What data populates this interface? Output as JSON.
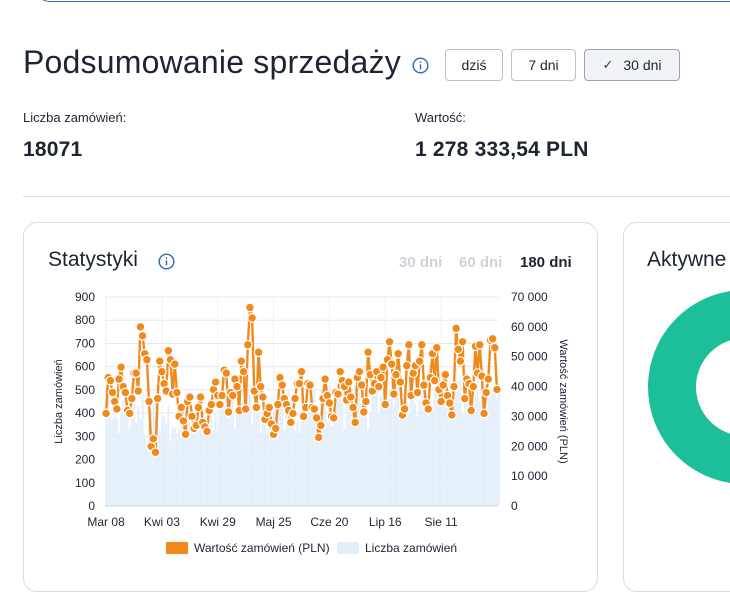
{
  "page": {
    "title": "Podsumowanie sprzedaży"
  },
  "range_buttons": [
    {
      "label": "dziś",
      "active": false
    },
    {
      "label": "7 dni",
      "active": false
    },
    {
      "label": "30 dni",
      "active": true
    }
  ],
  "metrics": {
    "orders": {
      "label": "Liczba zamówień:",
      "value": "18071"
    },
    "value": {
      "label": "Wartość:",
      "value": "1 278 333,54 PLN"
    }
  },
  "stats_card": {
    "title": "Statystyki",
    "periods": [
      {
        "label": "30 dni",
        "active": false
      },
      {
        "label": "60 dni",
        "active": false
      },
      {
        "label": "180 dni",
        "active": true
      }
    ]
  },
  "active_card": {
    "title": "Aktywne"
  },
  "colors": {
    "orange": "#f08a1c",
    "bars": "#e3eefb",
    "teal": "#1dbf9a",
    "accent": "#2b6cb0"
  },
  "chart_data": {
    "type": "line",
    "x_tick_labels": [
      "Mar 08",
      "Kwi 03",
      "Kwi 29",
      "Maj 25",
      "Cze 20",
      "Lip 16",
      "Sie 11"
    ],
    "x_tick_positions": [
      0,
      26,
      52,
      78,
      104,
      130,
      156
    ],
    "left_axis": {
      "title": "Liczba zamówień",
      "range": [
        0,
        900
      ],
      "ticks": [
        0,
        100,
        200,
        300,
        400,
        500,
        600,
        700,
        800,
        900
      ]
    },
    "right_axis": {
      "title": "Wartość zamówień (PLN)",
      "range": [
        0,
        70000
      ],
      "ticks": [
        "0",
        "10 000",
        "20 000",
        "30 000",
        "40 000",
        "50 000",
        "60 000",
        "70 000"
      ]
    },
    "legend": {
      "orange_label": "Wartość zamówień (PLN)",
      "bars_label": "Liczba zamówień",
      "placement": "bottom"
    },
    "grid": true,
    "series": [
      {
        "axis": "right",
        "style": "line-markers",
        "values": [
          31000,
          43000,
          42000,
          38000,
          35000,
          32500,
          42500,
          46500,
          40000,
          38000,
          32000,
          31000,
          36000,
          44500,
          44500,
          38500,
          60000,
          57000,
          51000,
          49000,
          35000,
          20000,
          22500,
          18000,
          36000,
          48500,
          45000,
          41000,
          38500,
          52000,
          49000,
          37500,
          47500,
          38000,
          30000,
          33000,
          28500,
          24000,
          35000,
          36500,
          30000,
          26000,
          27000,
          33000,
          36500,
          28000,
          26500,
          25000,
          32000,
          34000,
          39000,
          41500,
          37000,
          34000,
          37000,
          45500,
          44500,
          31500,
          38000,
          37000,
          42500,
          40000,
          32000,
          48500,
          45000,
          32500,
          54000,
          66500,
          63000,
          38500,
          33000,
          51500,
          40000,
          36500,
          29000,
          31000,
          33000,
          27500,
          24000,
          26000,
          34000,
          43000,
          40500,
          36000,
          34000,
          32000,
          28000,
          31000,
          36000,
          41000,
          41000,
          45000,
          30000,
          33000,
          41000,
          40500,
          33000,
          32500,
          29500,
          23000,
          27000,
          36000,
          42500,
          37000,
          34500,
          30000,
          29500,
          38000,
          37500,
          45000,
          42000,
          40000,
          35500,
          41500,
          36500,
          33000,
          28000,
          43000,
          45000,
          40500,
          31500,
          35000,
          51500,
          44000,
          38500,
          41000,
          45000,
          40000,
          43000,
          46500,
          34000,
          49000,
          55000,
          47500,
          37500,
          44000,
          51000,
          41500,
          30500,
          32500,
          47000,
          54000,
          37000,
          44500,
          47000,
          38000,
          48500,
          54000,
          40500,
          34500,
          32500,
          43000,
          51000,
          42000,
          53000,
          39000,
          35000,
          40500,
          44000,
          37000,
          34500,
          30500,
          40000,
          59500,
          52500,
          48500,
          55000,
          36000,
          42500,
          41000,
          32000,
          40000,
          53500,
          44500,
          54000,
          43500,
          31000,
          38000,
          42500,
          55500,
          56000,
          53000,
          39000
        ]
      },
      {
        "axis": "left",
        "style": "bars",
        "values": [
          395,
          470,
          415,
          375,
          450,
          380,
          315,
          420,
          455,
          500,
          520,
          340,
          420,
          440,
          360,
          430,
          375,
          500,
          305,
          280,
          345,
          415,
          445,
          460,
          450,
          325,
          365,
          390,
          355,
          430,
          280,
          340,
          335,
          310,
          330,
          395,
          440,
          415,
          320,
          360,
          340,
          345,
          370,
          405,
          385,
          310,
          365,
          315,
          350,
          395,
          325,
          395,
          345,
          420,
          445,
          450,
          495,
          380,
          500,
          525,
          330,
          395,
          430,
          445,
          525,
          560,
          565,
          525,
          350,
          430,
          485,
          515,
          315,
          415,
          410,
          330,
          390,
          370,
          450,
          410,
          480,
          420,
          510,
          325,
          430,
          495,
          400,
          460,
          325,
          360,
          315,
          405,
          460,
          365,
          410,
          450,
          500,
          520,
          330,
          390,
          500,
          520,
          530,
          360,
          535,
          345,
          395,
          450,
          495,
          540,
          535,
          330,
          465,
          505,
          440,
          395,
          520,
          485,
          490,
          445,
          530,
          490,
          330,
          400,
          505,
          530,
          545,
          395,
          475,
          505,
          420,
          435,
          505,
          540,
          435,
          470,
          515,
          380,
          485,
          520,
          445,
          395,
          500,
          525,
          440,
          385,
          450,
          490,
          520,
          540,
          385,
          455,
          430,
          520,
          540,
          545,
          445,
          460,
          515,
          420,
          545,
          430,
          445,
          490,
          535,
          540,
          395,
          445,
          480,
          525,
          540,
          425,
          480,
          545,
          450,
          505,
          475,
          415,
          465,
          510,
          485,
          500,
          465,
          525
        ]
      }
    ]
  }
}
